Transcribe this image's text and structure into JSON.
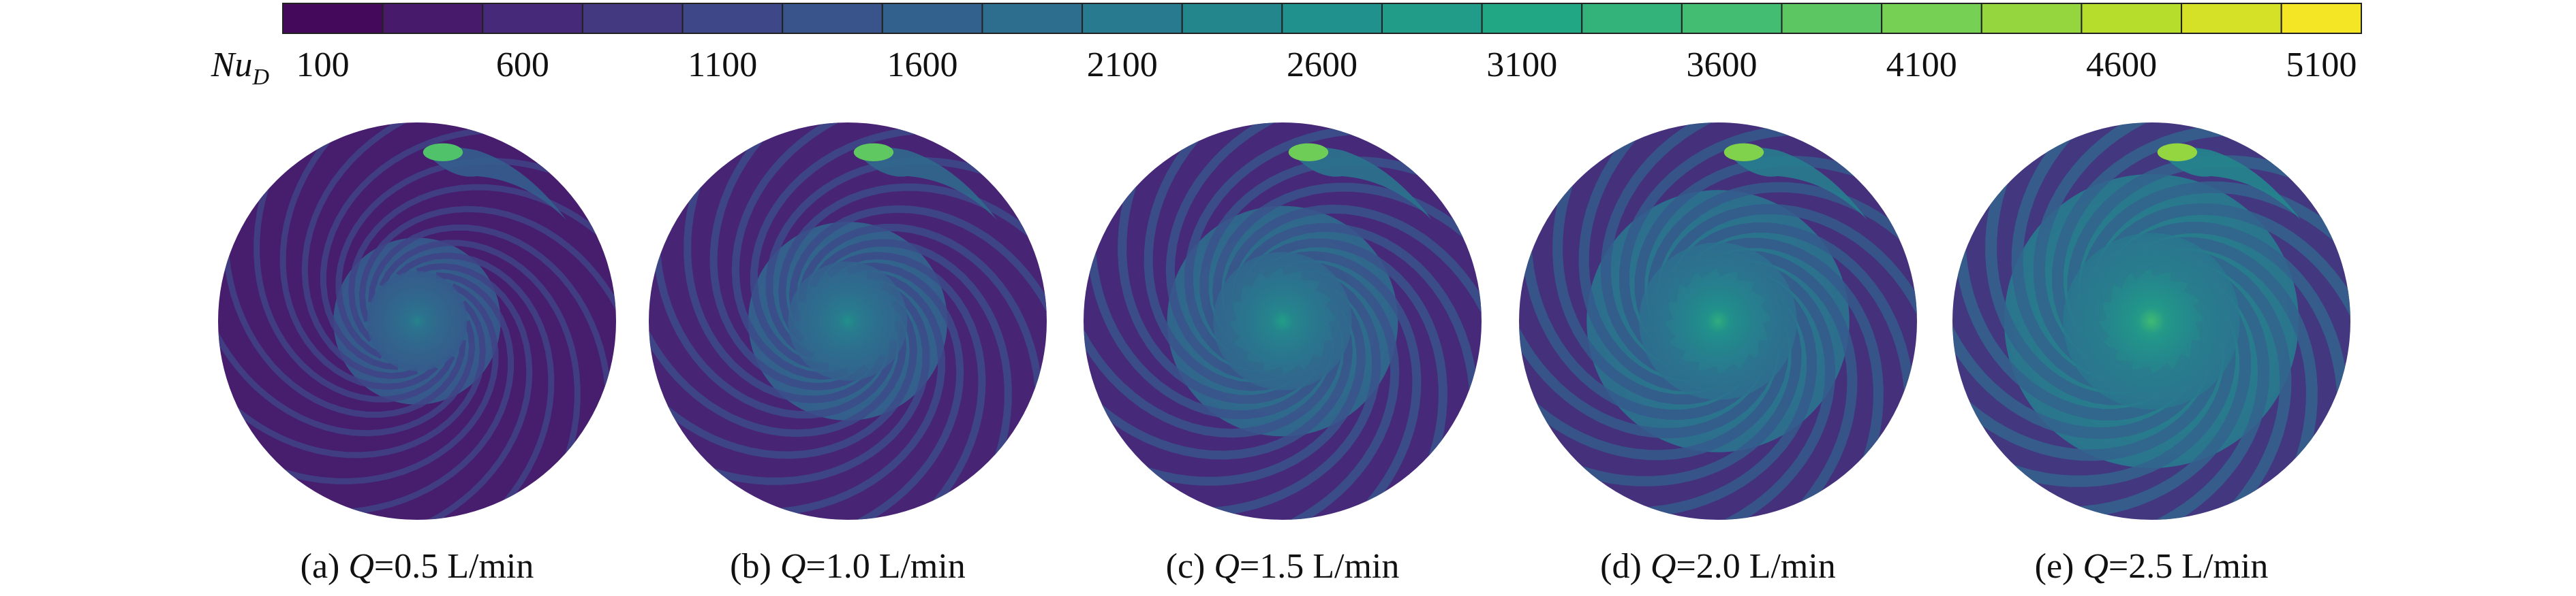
{
  "colorbar": {
    "label": {
      "main": "Nu",
      "sub": "D"
    },
    "range": [
      0,
      5200
    ],
    "step": 250,
    "ticks": [
      100,
      600,
      1100,
      1600,
      2100,
      2600,
      3100,
      3600,
      4100,
      4600,
      5100
    ]
  },
  "panels": [
    {
      "tag": "(a)",
      "var": "Q",
      "text": "=0.5 L/min"
    },
    {
      "tag": "(b)",
      "var": "Q",
      "text": "=1.0 L/min"
    },
    {
      "tag": "(c)",
      "var": "Q",
      "text": "=1.5 L/min"
    },
    {
      "tag": "(d)",
      "var": "Q",
      "text": "=2.0 L/min"
    },
    {
      "tag": "(e)",
      "var": "Q",
      "text": "=2.5 L/min"
    }
  ]
}
